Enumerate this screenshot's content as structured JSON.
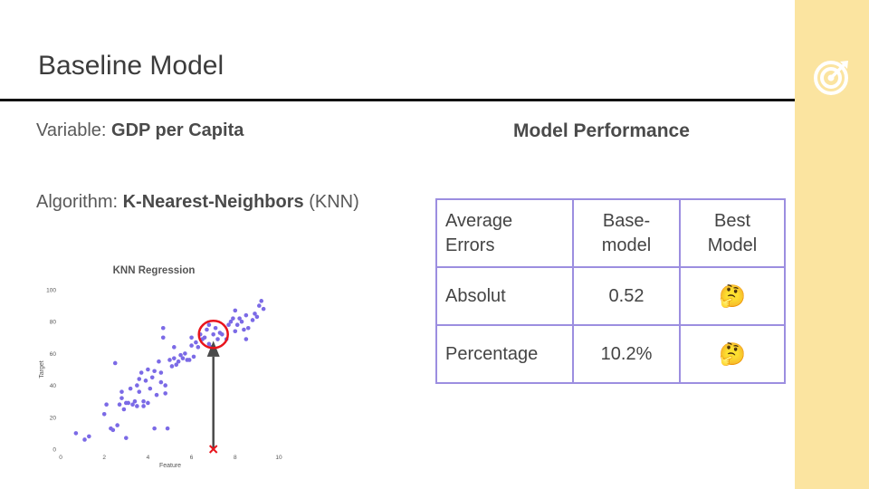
{
  "slide": {
    "title": "Baseline Model",
    "logo_icon": "target-icon",
    "accent_color": "#fbe4a0"
  },
  "variable": {
    "label": "Variable: ",
    "value": "GDP per Capita"
  },
  "algorithm": {
    "label": "Algorithm: ",
    "value": "K-Nearest-Neighbors",
    "suffix": " (KNN)"
  },
  "performance": {
    "title": "Model Performance",
    "table": {
      "header": {
        "col0_line1": "Average",
        "col0_line2": "Errors",
        "col1_line1": "Base-",
        "col1_line2": "model",
        "col2_line1": "Best",
        "col2_line2": "Model"
      },
      "rows": [
        {
          "metric": "Absolut",
          "base": "0.52",
          "best_icon": "thinking-face-icon"
        },
        {
          "metric": "Percentage",
          "base": "10.2%",
          "best_icon": "thinking-face-icon"
        }
      ],
      "border_color": "#9c8ee0"
    }
  },
  "chart_data": {
    "type": "scatter",
    "title": "KNN Regression",
    "xlabel": "Feature",
    "ylabel": "Target",
    "xlim": [
      0,
      10
    ],
    "ylim": [
      0,
      100
    ],
    "x_ticks": [
      "0",
      "2",
      "4",
      "6",
      "8",
      "10"
    ],
    "y_ticks": [
      "0",
      "20",
      "40",
      "60",
      "80",
      "100"
    ],
    "point_color": "#7b6ae6",
    "points": [
      [
        0.7,
        10
      ],
      [
        1.1,
        6
      ],
      [
        1.3,
        8
      ],
      [
        2.0,
        22
      ],
      [
        2.1,
        28
      ],
      [
        2.3,
        13
      ],
      [
        2.4,
        12
      ],
      [
        2.5,
        54
      ],
      [
        2.6,
        15
      ],
      [
        2.7,
        28
      ],
      [
        2.8,
        32
      ],
      [
        2.8,
        36
      ],
      [
        2.9,
        25
      ],
      [
        3.0,
        29
      ],
      [
        3.0,
        7
      ],
      [
        3.1,
        29
      ],
      [
        3.2,
        38
      ],
      [
        3.3,
        28
      ],
      [
        3.4,
        30
      ],
      [
        3.5,
        27
      ],
      [
        3.5,
        40
      ],
      [
        3.6,
        36
      ],
      [
        3.6,
        44
      ],
      [
        3.7,
        48
      ],
      [
        3.8,
        30
      ],
      [
        3.8,
        27
      ],
      [
        3.9,
        43
      ],
      [
        4.0,
        29
      ],
      [
        4.0,
        50
      ],
      [
        4.1,
        38
      ],
      [
        4.2,
        45
      ],
      [
        4.3,
        49
      ],
      [
        4.3,
        13
      ],
      [
        4.4,
        34
      ],
      [
        4.5,
        55
      ],
      [
        4.6,
        48
      ],
      [
        4.6,
        42
      ],
      [
        4.7,
        76
      ],
      [
        4.7,
        70
      ],
      [
        4.8,
        35
      ],
      [
        4.8,
        40
      ],
      [
        4.9,
        13
      ],
      [
        5.0,
        56
      ],
      [
        5.1,
        52
      ],
      [
        5.2,
        57
      ],
      [
        5.2,
        64
      ],
      [
        5.3,
        53
      ],
      [
        5.4,
        55
      ],
      [
        5.5,
        59
      ],
      [
        5.6,
        57
      ],
      [
        5.7,
        60
      ],
      [
        5.8,
        56
      ],
      [
        5.9,
        56
      ],
      [
        6.0,
        65
      ],
      [
        6.0,
        70
      ],
      [
        6.1,
        58
      ],
      [
        6.2,
        67
      ],
      [
        6.3,
        64
      ],
      [
        6.4,
        72
      ],
      [
        6.5,
        69
      ],
      [
        6.6,
        70
      ],
      [
        6.7,
        75
      ],
      [
        6.8,
        66
      ],
      [
        6.8,
        78
      ],
      [
        6.9,
        64
      ],
      [
        7.0,
        72
      ],
      [
        7.1,
        76
      ],
      [
        7.2,
        69
      ],
      [
        7.3,
        73
      ],
      [
        7.4,
        72
      ],
      [
        7.6,
        69
      ],
      [
        7.7,
        78
      ],
      [
        7.8,
        80
      ],
      [
        7.9,
        82
      ],
      [
        8.0,
        74
      ],
      [
        8.0,
        87
      ],
      [
        8.1,
        78
      ],
      [
        8.2,
        82
      ],
      [
        8.3,
        80
      ],
      [
        8.4,
        75
      ],
      [
        8.5,
        84
      ],
      [
        8.5,
        69
      ],
      [
        8.6,
        76
      ],
      [
        8.8,
        81
      ],
      [
        8.9,
        85
      ],
      [
        9.0,
        83
      ],
      [
        9.1,
        90
      ],
      [
        9.2,
        93
      ],
      [
        9.3,
        88
      ]
    ],
    "annotation": {
      "highlight_center": [
        7.0,
        72
      ],
      "query_x": 7.0,
      "highlight_color": "#e8141c",
      "arrow_color": "#4a4a4a"
    }
  }
}
